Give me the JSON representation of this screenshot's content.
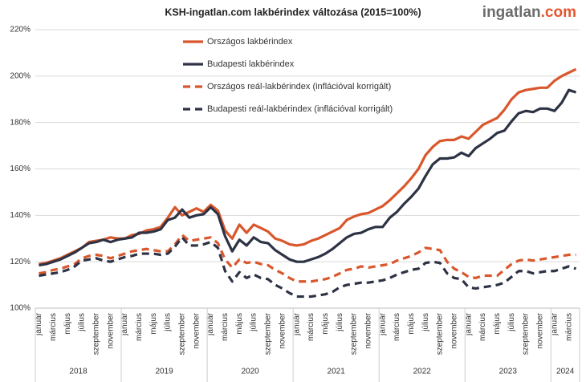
{
  "logo": {
    "main": "ingatlan",
    "accent": ".com"
  },
  "chart_data": {
    "type": "line",
    "title": "KSH-ingatlan.com lakbérindex változása (2015=100%)",
    "categories": [
      "január",
      null,
      "március",
      null,
      "május",
      null,
      "július",
      null,
      "szeptember",
      null,
      "november",
      null,
      "január",
      null,
      "március",
      null,
      "május",
      null,
      "július",
      null,
      "szeptember",
      null,
      "november",
      null,
      "január",
      null,
      "március",
      null,
      "május",
      null,
      "július",
      null,
      "szeptember",
      null,
      "november",
      null,
      "január",
      null,
      "március",
      null,
      "május",
      null,
      "július",
      null,
      "szeptember",
      null,
      "november",
      null,
      "január",
      null,
      "március",
      null,
      "május",
      null,
      "július",
      null,
      "szeptember",
      null,
      "november",
      null,
      "január",
      null,
      "március",
      null,
      "május",
      null,
      "július",
      null,
      "szeptember",
      null,
      "november",
      null,
      "január",
      null,
      "március",
      null
    ],
    "year_labels": [
      "2018",
      "2019",
      "2020",
      "2021",
      "2022",
      "2023",
      "2024"
    ],
    "ylim": [
      100,
      220
    ],
    "yticks": [
      {
        "value": 100,
        "label": "100%"
      },
      {
        "value": 120,
        "label": "120%"
      },
      {
        "value": 140,
        "label": "140%"
      },
      {
        "value": 160,
        "label": "160%"
      },
      {
        "value": 180,
        "label": "180%"
      },
      {
        "value": 200,
        "label": "200%"
      },
      {
        "value": 220,
        "label": "220%"
      }
    ],
    "grid": true,
    "legend": "top",
    "series": [
      {
        "name": "Országos lakbérindex",
        "color": "#d9572c",
        "dashed": false,
        "values": [
          119,
          119.5,
          120.5,
          121.5,
          123,
          124.5,
          126,
          128.5,
          129,
          129.5,
          130.5,
          130,
          130,
          131.5,
          132,
          133.5,
          134,
          135,
          139,
          143.5,
          140,
          141.5,
          143,
          141.5,
          144.5,
          142,
          133.5,
          130,
          136,
          132.5,
          136,
          134.5,
          133,
          130,
          129,
          127.5,
          127,
          127.5,
          129,
          130,
          131.5,
          133,
          134.5,
          138,
          139.5,
          140.5,
          141,
          142.5,
          144,
          146.5,
          149.5,
          152.5,
          156,
          160,
          166,
          169.5,
          172,
          172.5,
          172.5,
          174,
          173,
          176,
          179,
          180.5,
          182,
          185.5,
          190,
          193,
          194,
          194.5,
          195,
          195,
          198,
          200,
          201.5,
          203
        ]
      },
      {
        "name": "Budapesti lakbérindex",
        "color": "#2d3345",
        "dashed": false,
        "values": [
          118.5,
          119,
          120,
          121,
          122.5,
          124,
          126,
          128,
          128.5,
          129.5,
          128.5,
          129.5,
          130,
          130.5,
          132.5,
          132.5,
          133,
          134,
          138,
          139,
          142.5,
          139,
          140,
          140.5,
          143.5,
          140.5,
          131,
          124.5,
          129.5,
          127,
          130.5,
          128.5,
          128,
          125,
          123,
          121,
          120,
          120,
          121,
          122,
          123.5,
          125.5,
          128,
          130.5,
          132,
          132.5,
          134,
          135,
          135,
          139,
          141.5,
          145,
          148,
          151.5,
          157,
          162,
          164.5,
          164.5,
          165,
          167,
          165.5,
          169,
          171,
          173,
          175.5,
          176.5,
          180.5,
          184,
          185,
          184.5,
          186,
          186,
          185,
          188.5,
          194,
          193
        ]
      },
      {
        "name": "Országos reál-lakbérindex (inflációval korrigált)",
        "color": "#d9572c",
        "dashed": true,
        "values": [
          115,
          115.5,
          116.5,
          117,
          118,
          119,
          121.5,
          122.5,
          123,
          122.5,
          121.5,
          122.5,
          123.5,
          124.5,
          125,
          125.5,
          125,
          124.5,
          124.5,
          127.5,
          131.5,
          129,
          129.5,
          130,
          130.5,
          128,
          121,
          117.5,
          121,
          119.5,
          120,
          119,
          118.5,
          116.5,
          115,
          113,
          111.5,
          111.5,
          111.5,
          112,
          112.5,
          113.5,
          115,
          116.5,
          117,
          118,
          117.5,
          118,
          118.5,
          119,
          120.5,
          121.5,
          122.5,
          124,
          126,
          125.5,
          125,
          120,
          117,
          115.5,
          113.5,
          113,
          114,
          114,
          114,
          116.5,
          119,
          120.5,
          121,
          120.5,
          121,
          121.5,
          122,
          122.5,
          123,
          123
        ]
      },
      {
        "name": "Budapesti reál-lakbérindex (inflációval korrigált)",
        "color": "#2d3345",
        "dashed": true,
        "values": [
          114,
          114.5,
          115,
          115.5,
          116.5,
          118,
          120.5,
          121,
          121.5,
          120.5,
          120,
          121,
          122,
          122.5,
          123.5,
          123.5,
          123.5,
          123,
          123.5,
          126.5,
          130.5,
          127,
          127,
          127.5,
          128.5,
          126,
          116,
          111.5,
          115.5,
          113,
          114.5,
          113,
          112.5,
          110,
          108.5,
          106.5,
          105,
          105,
          105,
          105.5,
          106,
          107,
          109,
          110,
          110.5,
          111,
          111,
          111.5,
          112,
          113,
          114.5,
          115.5,
          116.5,
          117,
          119.5,
          120,
          119.5,
          115,
          113,
          112.5,
          109,
          108.5,
          109,
          109.5,
          110,
          111,
          113.5,
          116,
          116,
          115,
          115.5,
          116,
          116,
          117,
          118,
          117
        ]
      }
    ]
  }
}
